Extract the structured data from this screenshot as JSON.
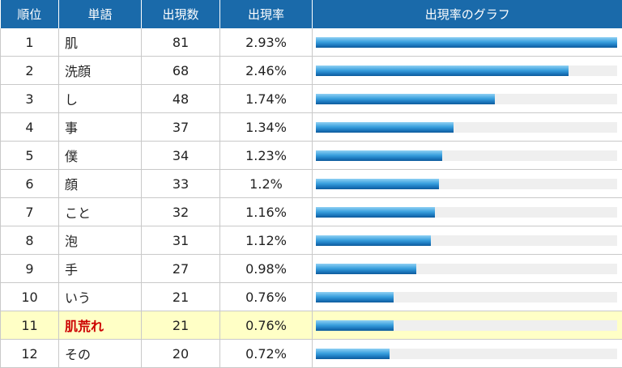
{
  "table": {
    "headers": {
      "rank": "順位",
      "word": "単語",
      "count": "出現数",
      "rate": "出現率",
      "graph": "出現率のグラフ"
    },
    "rows": [
      {
        "rank": "1",
        "word": "肌",
        "count": "81",
        "rate": "2.93%",
        "rate_value": 2.93,
        "highlight": false
      },
      {
        "rank": "2",
        "word": "洗顔",
        "count": "68",
        "rate": "2.46%",
        "rate_value": 2.46,
        "highlight": false
      },
      {
        "rank": "3",
        "word": "し",
        "count": "48",
        "rate": "1.74%",
        "rate_value": 1.74,
        "highlight": false
      },
      {
        "rank": "4",
        "word": "事",
        "count": "37",
        "rate": "1.34%",
        "rate_value": 1.34,
        "highlight": false
      },
      {
        "rank": "5",
        "word": "僕",
        "count": "34",
        "rate": "1.23%",
        "rate_value": 1.23,
        "highlight": false
      },
      {
        "rank": "6",
        "word": "顔",
        "count": "33",
        "rate": "1.2%",
        "rate_value": 1.2,
        "highlight": false
      },
      {
        "rank": "7",
        "word": "こと",
        "count": "32",
        "rate": "1.16%",
        "rate_value": 1.16,
        "highlight": false
      },
      {
        "rank": "8",
        "word": "泡",
        "count": "31",
        "rate": "1.12%",
        "rate_value": 1.12,
        "highlight": false
      },
      {
        "rank": "9",
        "word": "手",
        "count": "27",
        "rate": "0.98%",
        "rate_value": 0.98,
        "highlight": false
      },
      {
        "rank": "10",
        "word": "いう",
        "count": "21",
        "rate": "0.76%",
        "rate_value": 0.76,
        "highlight": false
      },
      {
        "rank": "11",
        "word": "肌荒れ",
        "count": "21",
        "rate": "0.76%",
        "rate_value": 0.76,
        "highlight": true
      },
      {
        "rank": "12",
        "word": "その",
        "count": "20",
        "rate": "0.72%",
        "rate_value": 0.72,
        "highlight": false
      }
    ]
  },
  "colors": {
    "header_bg": "#1a6aaa",
    "highlight_row_bg": "#ffffc6",
    "highlight_word": "#cc0000",
    "bar": "#1d79bf",
    "bar_track": "#efefef"
  }
}
